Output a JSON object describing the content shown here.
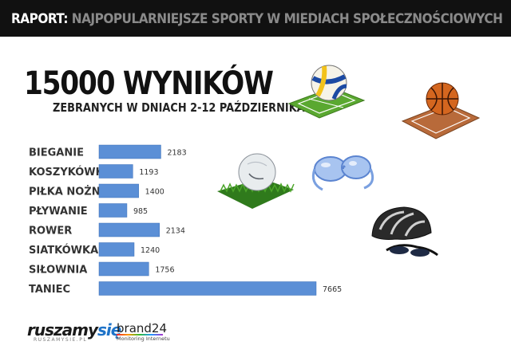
{
  "header": {
    "lead": "RAPORT:",
    "rest": "NAJPOPULARNIEJSZE SPORTY W MIEDIACH SPOŁECZNOŚCIOWYCH"
  },
  "headline": "15000 WYNIKÓW",
  "subhead": "ZEBRANYCH W DNIACH 2-12 PAŹDZIERNIKA",
  "chart_data": {
    "type": "bar",
    "orientation": "horizontal",
    "categories": [
      "BIEGANIE",
      "KOSZYKÓWKA",
      "PIŁKA NOŻNA",
      "PŁYWANIE",
      "ROWER",
      "SIATKÓWKA",
      "SIŁOWNIA",
      "TANIEC"
    ],
    "values": [
      2183,
      1193,
      1400,
      985,
      2134,
      1240,
      1756,
      7665
    ],
    "data_labels": [
      "2183",
      "1193",
      "1400",
      "985",
      "2134",
      "1240",
      "1756",
      "7665"
    ],
    "bar_color": "#5b8fd6",
    "grid": false
  },
  "icons": [
    "volleyball-icon",
    "basketball-icon",
    "soccer-ball-icon",
    "swim-goggles-icon",
    "bike-helmet-icon"
  ],
  "logos": {
    "ruszamysie_main": "ruszamy",
    "ruszamysie_accent": "się",
    "ruszamysie_url": "RUSZAMYSIE.PL",
    "brand24_name": "brand24",
    "brand24_sub": "Monitoring Internetu"
  }
}
